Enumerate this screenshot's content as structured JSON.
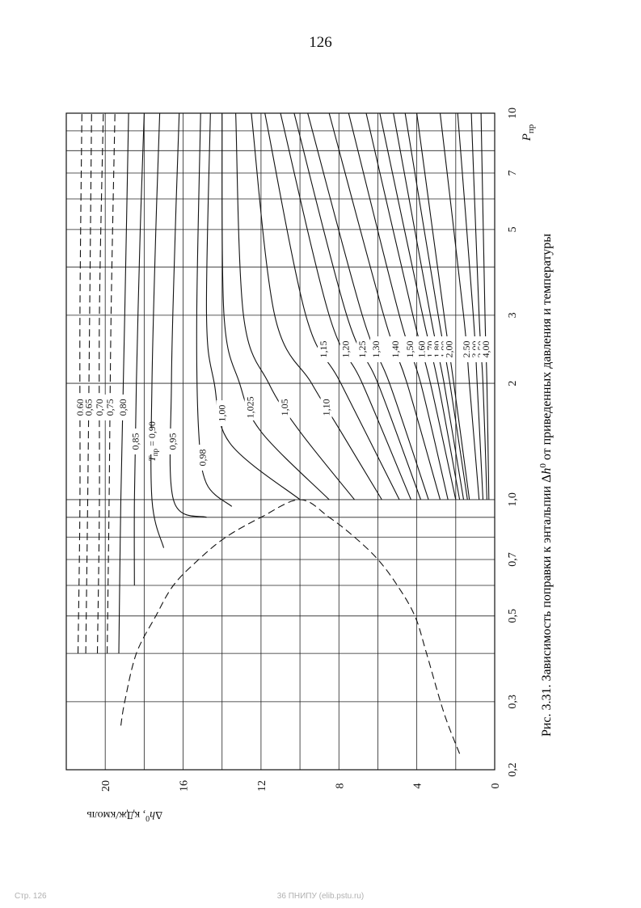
{
  "page": {
    "number": "126",
    "footer_left": "Стр. 126",
    "footer_center": "36 ПНИПУ (elib.pstu.ru)"
  },
  "figure": {
    "caption_prefix": "Рис. 3.31. Зависимость поправки к энтальпии Δ",
    "caption_symbol": "h",
    "caption_sup": "0",
    "caption_suffix": " от приведенных давления и температуры"
  },
  "chart_data": {
    "type": "line",
    "orientation": "rotated 90° counter-clockwise (P axis runs bottom-to-top, Δh axis runs left-to-right)",
    "x_scale": "log",
    "xlim": [
      0.2,
      10
    ],
    "ylim": [
      0,
      22
    ],
    "x_label_main": "P",
    "x_label_sub": "пр",
    "y_label_main": "Δh",
    "y_label_sup": "0",
    "y_label_rest": ", кДж/кмоль",
    "x_ticks": [
      {
        "v": 0.2,
        "label": "0,2"
      },
      {
        "v": 0.3,
        "label": "0,3"
      },
      {
        "v": 0.5,
        "label": "0,5"
      },
      {
        "v": 0.7,
        "label": "0,7"
      },
      {
        "v": 1.0,
        "label": "1,0"
      },
      {
        "v": 2,
        "label": "2"
      },
      {
        "v": 3,
        "label": "3"
      },
      {
        "v": 5,
        "label": "5"
      },
      {
        "v": 7,
        "label": "7"
      },
      {
        "v": 10,
        "label": "10"
      }
    ],
    "x_grid": [
      0.2,
      0.3,
      0.4,
      0.5,
      0.6,
      0.7,
      0.8,
      0.9,
      1.0,
      2,
      3,
      4,
      5,
      6,
      7,
      8,
      9,
      10
    ],
    "y_ticks": [
      {
        "v": 0,
        "label": "0"
      },
      {
        "v": 4,
        "label": "4"
      },
      {
        "v": 8,
        "label": "8"
      },
      {
        "v": 12,
        "label": "12"
      },
      {
        "v": 16,
        "label": "16"
      },
      {
        "v": 20,
        "label": "20"
      }
    ],
    "y_grid": [
      0,
      2,
      4,
      6,
      8,
      10,
      12,
      14,
      16,
      18,
      20,
      22
    ],
    "saturation_envelope": {
      "dash": true,
      "points": [
        [
          0.22,
          1.8
        ],
        [
          0.28,
          2.6
        ],
        [
          0.4,
          3.5
        ],
        [
          0.5,
          4.1
        ],
        [
          0.6,
          5.0
        ],
        [
          0.7,
          6.0
        ],
        [
          0.8,
          7.2
        ],
        [
          0.9,
          8.5
        ],
        [
          1.0,
          10.0
        ],
        [
          0.9,
          12.0
        ],
        [
          0.8,
          13.8
        ],
        [
          0.7,
          15.2
        ],
        [
          0.6,
          16.5
        ],
        [
          0.5,
          17.4
        ],
        [
          0.4,
          18.4
        ],
        [
          0.3,
          19.0
        ],
        [
          0.26,
          19.2
        ]
      ]
    },
    "series": [
      {
        "name": "0,60",
        "dash": true,
        "points": [
          [
            0.4,
            21.4
          ],
          [
            1.0,
            21.3
          ],
          [
            3.0,
            21.3
          ],
          [
            10,
            21.2
          ]
        ]
      },
      {
        "name": "0,65",
        "dash": true,
        "points": [
          [
            0.4,
            21.0
          ],
          [
            1.0,
            20.9
          ],
          [
            3.0,
            20.8
          ],
          [
            10,
            20.7
          ]
        ]
      },
      {
        "name": "0,70",
        "dash": true,
        "points": [
          [
            0.4,
            20.4
          ],
          [
            1.0,
            20.3
          ],
          [
            3.0,
            20.3
          ],
          [
            10,
            20.1
          ]
        ]
      },
      {
        "name": "0,75",
        "dash": true,
        "points": [
          [
            0.4,
            19.9
          ],
          [
            1.0,
            19.8
          ],
          [
            3.0,
            19.7
          ],
          [
            10,
            19.5
          ]
        ]
      },
      {
        "name": "0,80",
        "points": [
          [
            0.4,
            19.3
          ],
          [
            1.0,
            19.2
          ],
          [
            3.0,
            19.0
          ],
          [
            10,
            18.8
          ]
        ]
      },
      {
        "name": "0,85",
        "points": [
          [
            0.6,
            18.5
          ],
          [
            1.0,
            18.5
          ],
          [
            2.0,
            18.4
          ],
          [
            5.0,
            18.2
          ],
          [
            10,
            18.0
          ]
        ]
      },
      {
        "name": "0,90",
        "label_prefix": "T",
        "label_prefix_sub": "пр",
        "points": [
          [
            0.75,
            17.0
          ],
          [
            1.0,
            17.6
          ],
          [
            2.0,
            17.6
          ],
          [
            5.0,
            17.4
          ],
          [
            10,
            17.2
          ]
        ]
      },
      {
        "name": "0,95",
        "points": [
          [
            0.9,
            14.8
          ],
          [
            1.0,
            16.5
          ],
          [
            2.0,
            16.6
          ],
          [
            5.0,
            16.4
          ],
          [
            10,
            16.2
          ]
        ]
      },
      {
        "name": "0,98",
        "points": [
          [
            0.96,
            13.5
          ],
          [
            1.1,
            14.8
          ],
          [
            1.5,
            15.2
          ],
          [
            3.0,
            15.3
          ],
          [
            10,
            15.1
          ]
        ]
      },
      {
        "name": "1,00",
        "points": [
          [
            1.0,
            10.0
          ],
          [
            1.4,
            13.6
          ],
          [
            2.0,
            14.4
          ],
          [
            3.0,
            14.8
          ],
          [
            10,
            14.6
          ]
        ]
      },
      {
        "name": "1,025",
        "points": [
          [
            1.0,
            8.5
          ],
          [
            1.5,
            12.0
          ],
          [
            2.0,
            13.1
          ],
          [
            3.0,
            13.9
          ],
          [
            10,
            14.0
          ]
        ]
      },
      {
        "name": "1,05",
        "points": [
          [
            1.0,
            7.2
          ],
          [
            1.5,
            10.0
          ],
          [
            2.0,
            11.6
          ],
          [
            3.0,
            12.9
          ],
          [
            10,
            13.3
          ]
        ]
      },
      {
        "name": "1,10",
        "points": [
          [
            1.0,
            5.8
          ],
          [
            1.5,
            7.9
          ],
          [
            2.0,
            9.4
          ],
          [
            3.0,
            11.3
          ],
          [
            10,
            12.5
          ]
        ]
      },
      {
        "name": "1,15",
        "points": [
          [
            1.0,
            4.9
          ],
          [
            2.0,
            7.9
          ],
          [
            3.0,
            9.7
          ],
          [
            10,
            11.8
          ]
        ]
      },
      {
        "name": "1,20",
        "points": [
          [
            1.0,
            4.3
          ],
          [
            2.0,
            6.8
          ],
          [
            3.0,
            8.5
          ],
          [
            10,
            11.0
          ]
        ]
      },
      {
        "name": "1,25",
        "points": [
          [
            1.0,
            3.8
          ],
          [
            2.0,
            6.0
          ],
          [
            3.0,
            7.6
          ],
          [
            10,
            10.3
          ]
        ]
      },
      {
        "name": "1,30",
        "points": [
          [
            1.0,
            3.4
          ],
          [
            2.0,
            5.4
          ],
          [
            3.0,
            6.8
          ],
          [
            10,
            9.6
          ]
        ]
      },
      {
        "name": "1,40",
        "points": [
          [
            1.0,
            2.8
          ],
          [
            2.0,
            4.5
          ],
          [
            3.0,
            5.7
          ],
          [
            10,
            8.5
          ]
        ]
      },
      {
        "name": "1,50",
        "points": [
          [
            1.0,
            2.4
          ],
          [
            2.0,
            3.8
          ],
          [
            3.0,
            4.9
          ],
          [
            10,
            7.5
          ]
        ]
      },
      {
        "name": "1,60",
        "points": [
          [
            1.0,
            2.0
          ],
          [
            2.0,
            3.3
          ],
          [
            3.0,
            4.2
          ],
          [
            10,
            6.6
          ]
        ]
      },
      {
        "name": "1,70",
        "points": [
          [
            1.0,
            1.8
          ],
          [
            2.0,
            2.9
          ],
          [
            3.0,
            3.7
          ],
          [
            10,
            5.9
          ]
        ]
      },
      {
        "name": "1,80",
        "points": [
          [
            1.0,
            1.6
          ],
          [
            2.0,
            2.6
          ],
          [
            3.0,
            3.3
          ],
          [
            10,
            5.2
          ]
        ]
      },
      {
        "name": "1,90",
        "points": [
          [
            1.0,
            1.4
          ],
          [
            2.0,
            2.3
          ],
          [
            3.0,
            2.9
          ],
          [
            10,
            4.6
          ]
        ]
      },
      {
        "name": "2,00",
        "points": [
          [
            1.0,
            1.3
          ],
          [
            2.0,
            2.1
          ],
          [
            3.0,
            2.6
          ],
          [
            10,
            4.0
          ]
        ]
      },
      {
        "name": "2,50",
        "points": [
          [
            1.0,
            0.8
          ],
          [
            2.0,
            1.3
          ],
          [
            3.0,
            1.6
          ],
          [
            10,
            2.8
          ]
        ]
      },
      {
        "name": "3,00",
        "points": [
          [
            1.0,
            0.6
          ],
          [
            2.0,
            0.9
          ],
          [
            3.0,
            1.1
          ],
          [
            10,
            1.9
          ]
        ]
      },
      {
        "name": "3,50",
        "points": [
          [
            1.0,
            0.4
          ],
          [
            2.0,
            0.6
          ],
          [
            3.0,
            0.8
          ],
          [
            10,
            1.2
          ]
        ]
      },
      {
        "name": "4,00",
        "points": [
          [
            1.0,
            0.3
          ],
          [
            2.0,
            0.4
          ],
          [
            3.0,
            0.5
          ],
          [
            10,
            0.7
          ]
        ]
      }
    ]
  }
}
